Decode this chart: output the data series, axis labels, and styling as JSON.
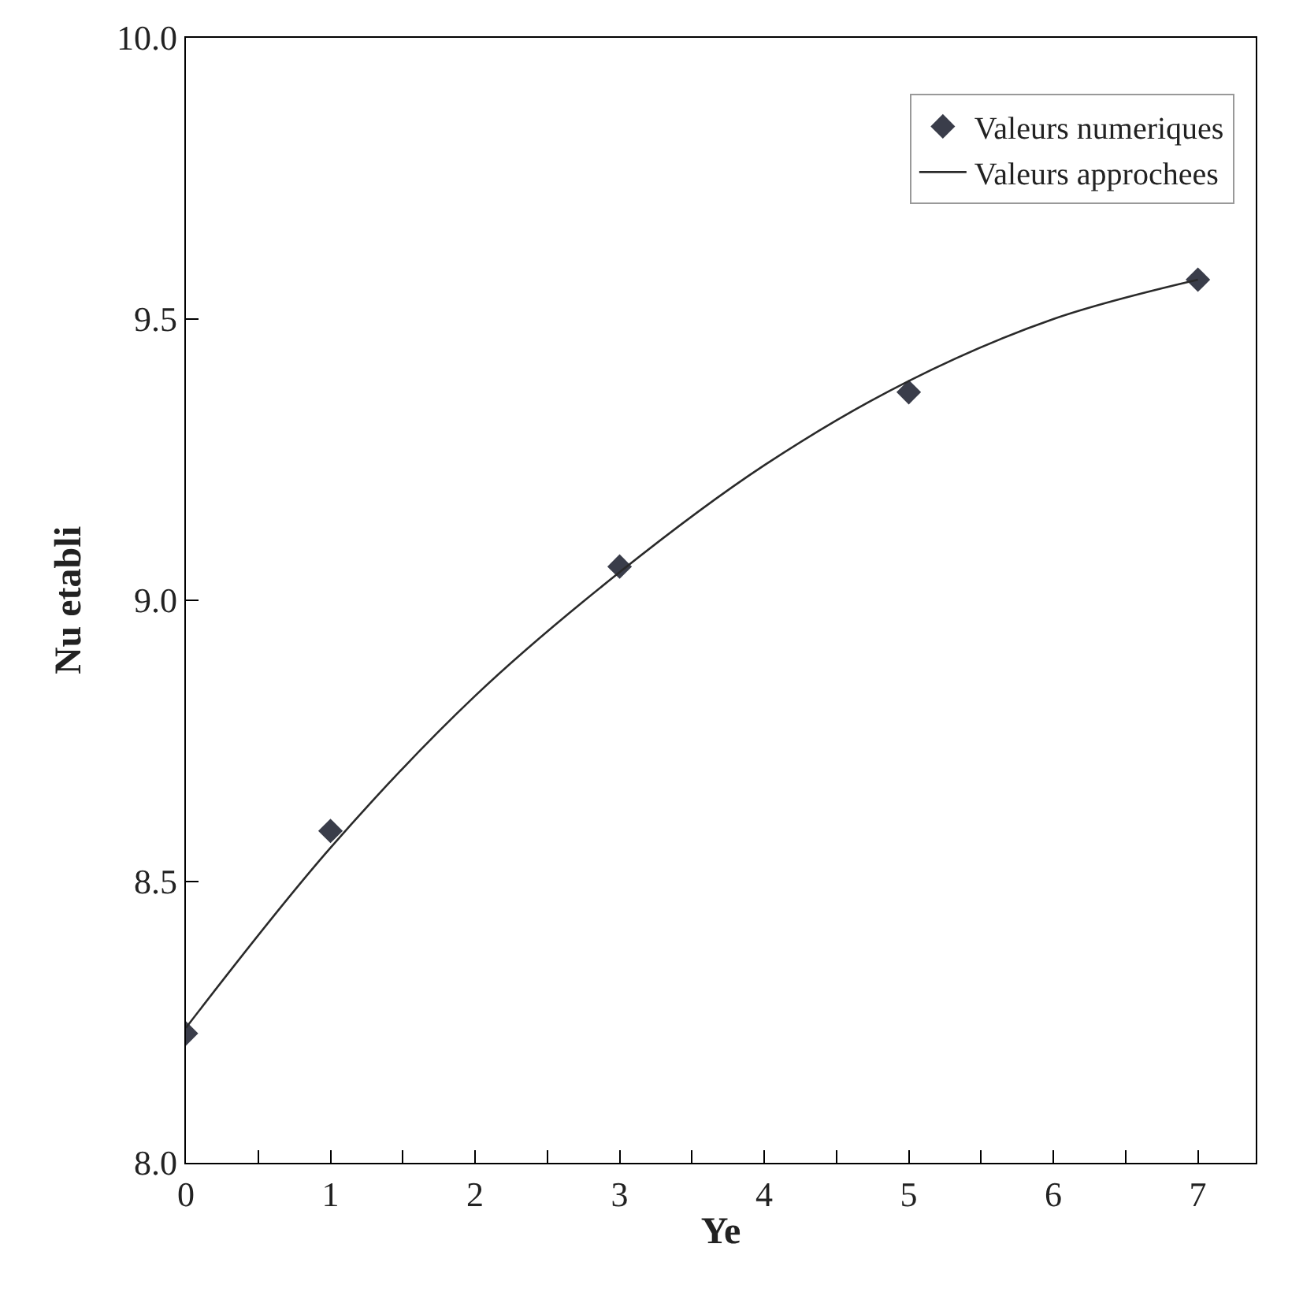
{
  "chart_data": {
    "type": "scatter",
    "xlabel": "Ye",
    "ylabel": "Nu etabli",
    "xlim": [
      0,
      7.4
    ],
    "ylim": [
      8.0,
      10.0
    ],
    "xticks": [
      0,
      {
        "value": 0.5,
        "label": null
      },
      1,
      {
        "value": 1.5,
        "label": null
      },
      2,
      {
        "value": 2.5,
        "label": null
      },
      3,
      {
        "value": 3.5,
        "label": null
      },
      4,
      {
        "value": 4.5,
        "label": null
      },
      5,
      {
        "value": 5.5,
        "label": null
      },
      6,
      {
        "value": 6.5,
        "label": null
      },
      7
    ],
    "yticks": [
      {
        "value": 8.0,
        "label": "8.0"
      },
      {
        "value": 8.5,
        "label": "8.5"
      },
      {
        "value": 9.0,
        "label": "9.0"
      },
      {
        "value": 9.5,
        "label": "9.5"
      },
      {
        "value": 10.0,
        "label": "10.0"
      }
    ],
    "legend": "top right",
    "series": [
      {
        "name": "Valeurs numeriques",
        "marker": "diamond",
        "color": "#3a3d4a",
        "x": [
          0,
          1,
          3,
          5,
          7
        ],
        "values": [
          8.23,
          8.59,
          9.06,
          9.37,
          9.57
        ]
      },
      {
        "name": "Valeurs approchees",
        "type": "line",
        "marker": "none",
        "line_style": "solid",
        "color": "#2a2a2a",
        "x": [
          0,
          1,
          2,
          3,
          4,
          5,
          6,
          7
        ],
        "values": [
          8.24,
          8.56,
          8.83,
          9.05,
          9.24,
          9.39,
          9.5,
          9.57
        ]
      }
    ]
  }
}
